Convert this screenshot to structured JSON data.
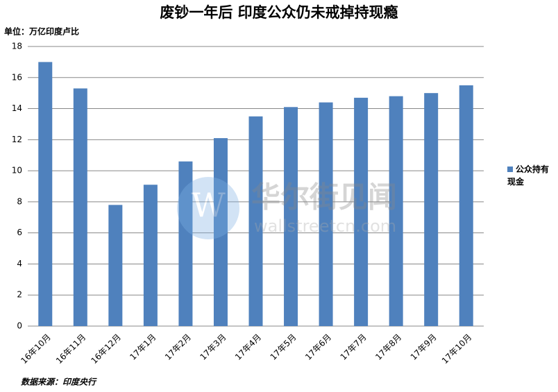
{
  "chart_data": {
    "type": "bar",
    "title": "废钞一年后 印度公众仍未戒掉持现瘾",
    "unit_label": "单位：万亿印度卢比",
    "source": "数据来源：印度央行",
    "watermark": [
      "华尔街见闻",
      "wallstreetcn.com"
    ],
    "categories": [
      "16年10月",
      "16年11月",
      "16年12月",
      "17年1月",
      "17年2月",
      "17年3月",
      "17年4月",
      "17年5月",
      "17年6月",
      "17年7月",
      "17年8月",
      "17年9月",
      "17年10月"
    ],
    "series": [
      {
        "name": "公众持有现金",
        "color": "#4f81bd",
        "values": [
          17.0,
          15.3,
          7.8,
          9.1,
          10.6,
          12.1,
          13.5,
          14.1,
          14.4,
          14.7,
          14.8,
          15.0,
          15.5
        ]
      }
    ],
    "ylim": [
      0,
      18
    ],
    "yticks": [
      0,
      2,
      4,
      6,
      8,
      10,
      12,
      14,
      16,
      18
    ],
    "grid": true,
    "legend": "right"
  }
}
